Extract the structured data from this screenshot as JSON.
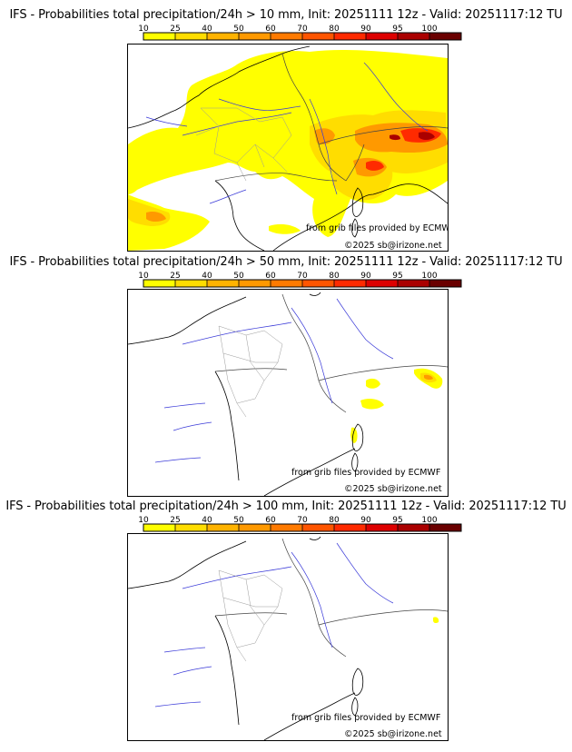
{
  "colorbar": {
    "ticks": [
      "10",
      "25",
      "40",
      "50",
      "60",
      "70",
      "80",
      "90",
      "95",
      "100"
    ],
    "colors": [
      "#ffff00",
      "#ffdd00",
      "#ffb300",
      "#ff9900",
      "#ff7a00",
      "#ff5500",
      "#ff2a00",
      "#dd0000",
      "#aa0000",
      "#6a0000"
    ]
  },
  "panels": [
    {
      "title": "IFS - Probabilities total precipitation/24h > 10 mm, Init: 20251111 12z - Valid: 20251117:12 TU",
      "credit_source": "from grib files provided by ECMWF",
      "credit_copyright": "©2025 sb@irizone.net"
    },
    {
      "title": "IFS - Probabilities total precipitation/24h > 50 mm, Init: 20251111 12z - Valid: 20251117:12 TU",
      "credit_source": "from grib files provided by ECMWF",
      "credit_copyright": "©2025 sb@irizone.net"
    },
    {
      "title": "IFS - Probabilities total precipitation/24h > 100 mm, Init: 20251111 12z - Valid: 20251117:12 TU",
      "credit_source": "from grib files provided by ECMWF",
      "credit_copyright": "©2025 sb@irizone.net"
    }
  ]
}
